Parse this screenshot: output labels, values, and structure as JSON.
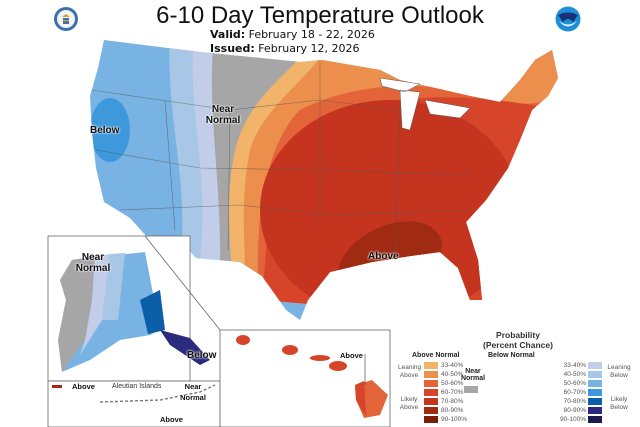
{
  "header": {
    "title": "6-10 Day Temperature Outlook",
    "valid_label": "Valid:",
    "valid_value": "February 18 - 22, 2026",
    "issued_label": "Issued:",
    "issued_value": "February 12, 2026"
  },
  "logos": {
    "left": "doc-seal-icon",
    "right": "noaa-logo-icon"
  },
  "map_labels": {
    "conus_below": "Below",
    "conus_near_normal": "Near Normal",
    "conus_above": "Above",
    "alaska_near_normal": "Near Normal",
    "alaska_below": "Below",
    "aleutian_above_left": "Above",
    "aleutian_title": "Aleutian Islands",
    "aleutian_near_normal": "Near Normal",
    "aleutian_above_bottom": "Above",
    "hawaii_above": "Above"
  },
  "legend": {
    "title_line1": "Probability",
    "title_line2": "(Percent Chance)",
    "above_header": "Above Normal",
    "below_header": "Below Normal",
    "near_label": "Near Normal",
    "near_color": "#a6a6a6",
    "leaning_above": "Leaning Above",
    "likely_above": "Likely Above",
    "leaning_below": "Leaning Below",
    "likely_below": "Likely Below",
    "above": [
      {
        "range": "33-40%",
        "color": "#f2b46a"
      },
      {
        "range": "40-50%",
        "color": "#ec8f4d"
      },
      {
        "range": "50-60%",
        "color": "#e4643a"
      },
      {
        "range": "60-70%",
        "color": "#d6452a"
      },
      {
        "range": "70-80%",
        "color": "#c4341e"
      },
      {
        "range": "80-90%",
        "color": "#a02a12"
      },
      {
        "range": "90-100%",
        "color": "#7a1e08"
      }
    ],
    "below": [
      {
        "range": "33-40%",
        "color": "#c2cdea"
      },
      {
        "range": "40-50%",
        "color": "#a8c6e6"
      },
      {
        "range": "50-60%",
        "color": "#79b3e3"
      },
      {
        "range": "60-70%",
        "color": "#3d98dc"
      },
      {
        "range": "70-80%",
        "color": "#0a5fa8"
      },
      {
        "range": "80-90%",
        "color": "#2b2a7e"
      },
      {
        "range": "90-100%",
        "color": "#1d1a4d"
      }
    ]
  }
}
